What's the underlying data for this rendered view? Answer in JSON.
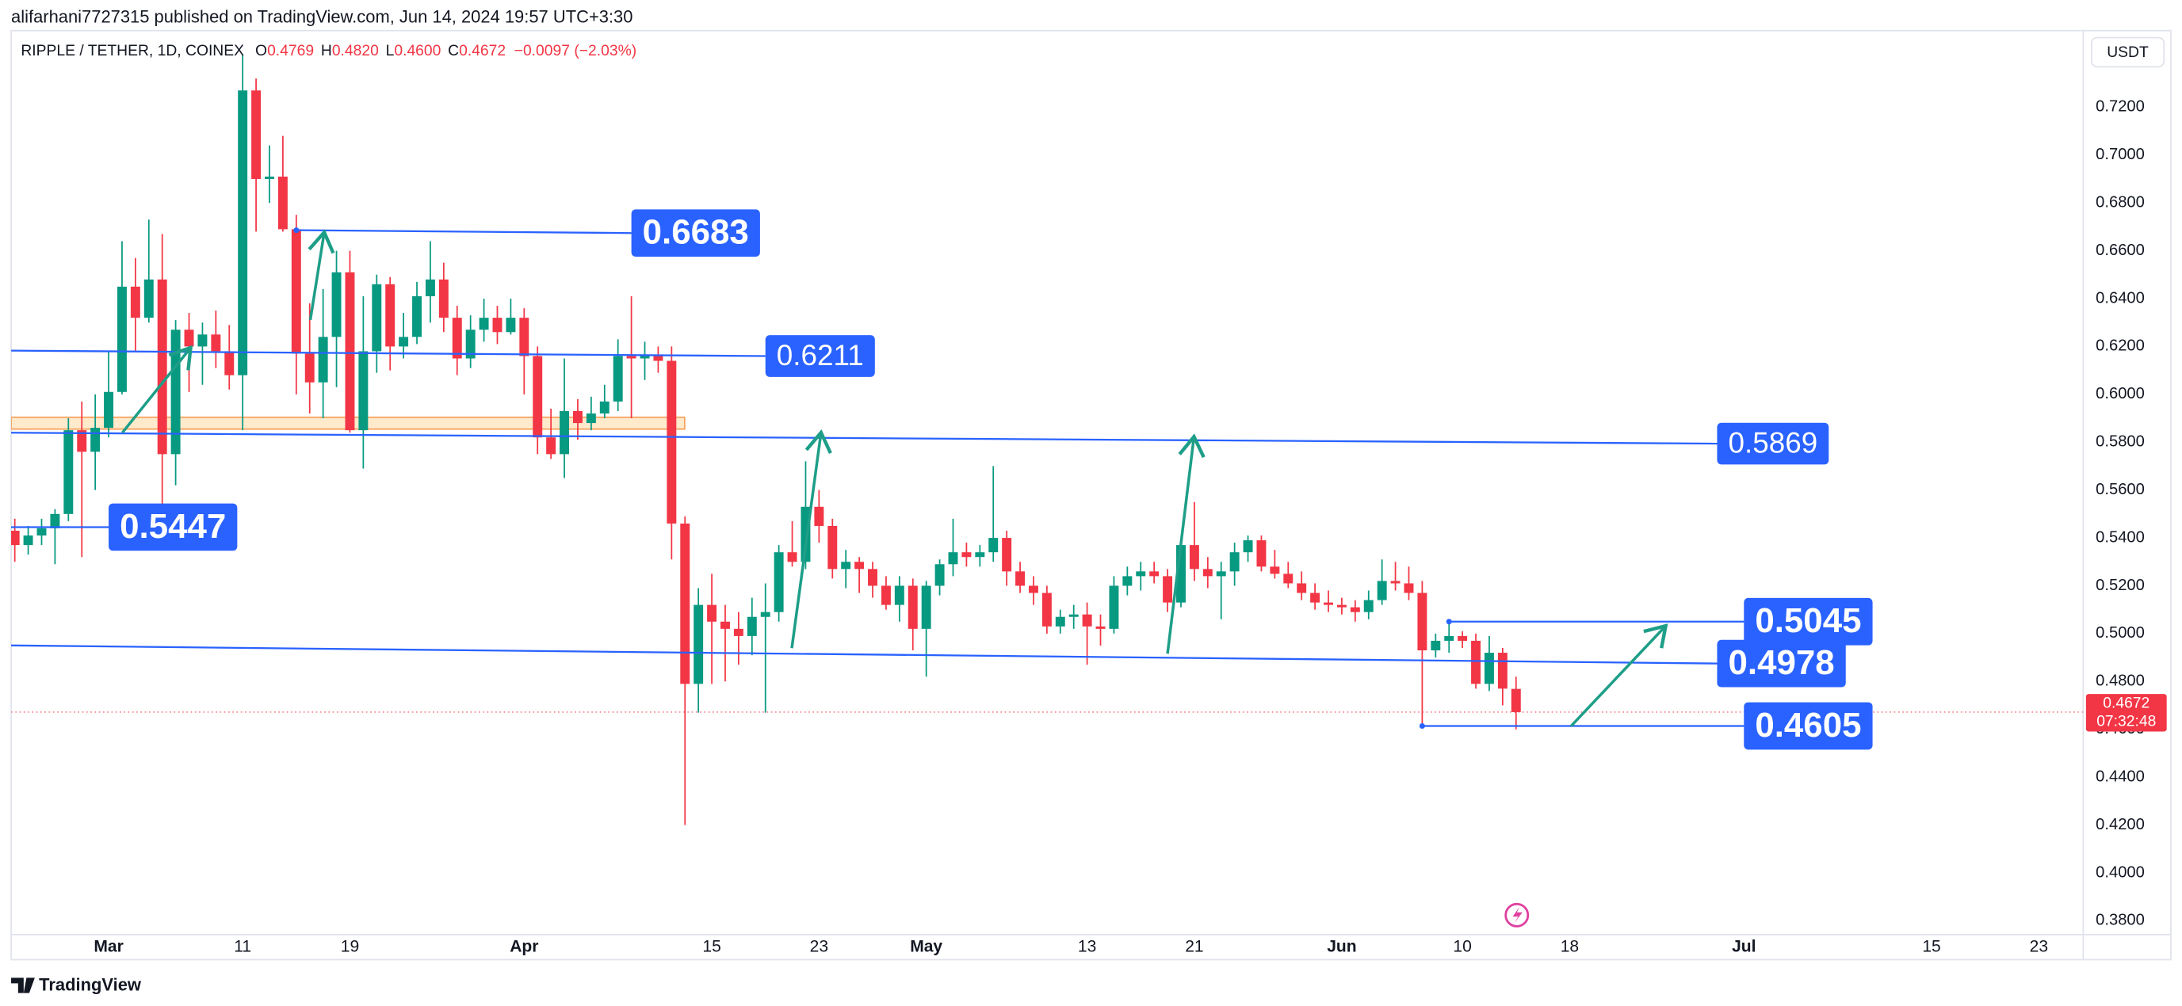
{
  "header": {
    "published": "alifarhani7727315 published on TradingView.com, Jun 14, 2024 19:57 UTC+3:30"
  },
  "footer": {
    "brand": "TradingView"
  },
  "chart_data": {
    "type": "candlestick",
    "symbol": "RIPPLE / TETHER, 1D, COINEX",
    "ohlc_legend": [
      {
        "key": "O",
        "value": "0.4769"
      },
      {
        "key": "H",
        "value": "0.4820"
      },
      {
        "key": "L",
        "value": "0.4600"
      },
      {
        "key": "C",
        "value": "0.4672"
      }
    ],
    "change": "−0.0097 (−2.03%)",
    "currency": "USDT",
    "up_color": "#089981",
    "down_color": "#f23645",
    "drawing_color": "#2962ff",
    "x": [
      "Feb 23",
      "Feb 24",
      "Feb 25",
      "Feb 26",
      "Feb 27",
      "Feb 28",
      "Feb 29",
      "Mar 1",
      "Mar 2",
      "Mar 3",
      "Mar 4",
      "Mar 5",
      "Mar 6",
      "Mar 7",
      "Mar 8",
      "Mar 9",
      "Mar 10",
      "Mar 11",
      "Mar 12",
      "Mar 13",
      "Mar 14",
      "Mar 15",
      "Mar 16",
      "Mar 17",
      "Mar 18",
      "Mar 19",
      "Mar 20",
      "Mar 21",
      "Mar 22",
      "Mar 23",
      "Mar 24",
      "Mar 25",
      "Mar 26",
      "Mar 27",
      "Mar 28",
      "Mar 29",
      "Mar 30",
      "Mar 31",
      "Apr 1",
      "Apr 2",
      "Apr 3",
      "Apr 4",
      "Apr 5",
      "Apr 6",
      "Apr 7",
      "Apr 8",
      "Apr 9",
      "Apr 10",
      "Apr 11",
      "Apr 12",
      "Apr 13",
      "Apr 14",
      "Apr 15",
      "Apr 16",
      "Apr 17",
      "Apr 18",
      "Apr 19",
      "Apr 20",
      "Apr 21",
      "Apr 22",
      "Apr 23",
      "Apr 24",
      "Apr 25",
      "Apr 26",
      "Apr 27",
      "Apr 28",
      "Apr 29",
      "Apr 30",
      "May 1",
      "May 2",
      "May 3",
      "May 4",
      "May 5",
      "May 6",
      "May 7",
      "May 8",
      "May 9",
      "May 10",
      "May 11",
      "May 12",
      "May 13",
      "May 14",
      "May 15",
      "May 16",
      "May 17",
      "May 18",
      "May 19",
      "May 20",
      "May 21",
      "May 22",
      "May 23",
      "May 24",
      "May 25",
      "May 26",
      "May 27",
      "May 28",
      "May 29",
      "May 30",
      "May 31",
      "Jun 1",
      "Jun 2",
      "Jun 3",
      "Jun 4",
      "Jun 5",
      "Jun 6",
      "Jun 7",
      "Jun 8",
      "Jun 9",
      "Jun 10",
      "Jun 11",
      "Jun 12",
      "Jun 13",
      "Jun 14"
    ],
    "ohlc": [
      [
        0.543,
        0.548,
        0.53,
        0.537
      ],
      [
        0.537,
        0.545,
        0.533,
        0.541
      ],
      [
        0.541,
        0.548,
        0.537,
        0.544
      ],
      [
        0.544,
        0.552,
        0.529,
        0.55
      ],
      [
        0.55,
        0.59,
        0.547,
        0.585
      ],
      [
        0.585,
        0.597,
        0.532,
        0.576
      ],
      [
        0.576,
        0.6,
        0.56,
        0.586
      ],
      [
        0.586,
        0.618,
        0.582,
        0.601
      ],
      [
        0.601,
        0.664,
        0.6,
        0.645
      ],
      [
        0.645,
        0.657,
        0.618,
        0.632
      ],
      [
        0.632,
        0.673,
        0.63,
        0.648
      ],
      [
        0.648,
        0.667,
        0.55,
        0.575
      ],
      [
        0.575,
        0.631,
        0.562,
        0.627
      ],
      [
        0.627,
        0.634,
        0.601,
        0.62
      ],
      [
        0.62,
        0.63,
        0.604,
        0.625
      ],
      [
        0.625,
        0.635,
        0.611,
        0.618
      ],
      [
        0.618,
        0.629,
        0.602,
        0.608
      ],
      [
        0.608,
        0.742,
        0.585,
        0.727
      ],
      [
        0.727,
        0.732,
        0.668,
        0.69
      ],
      [
        0.69,
        0.704,
        0.68,
        0.691
      ],
      [
        0.691,
        0.708,
        0.668,
        0.669
      ],
      [
        0.669,
        0.675,
        0.6,
        0.617
      ],
      [
        0.617,
        0.638,
        0.592,
        0.605
      ],
      [
        0.605,
        0.644,
        0.59,
        0.624
      ],
      [
        0.624,
        0.66,
        0.603,
        0.651
      ],
      [
        0.651,
        0.66,
        0.584,
        0.585
      ],
      [
        0.585,
        0.641,
        0.569,
        0.618
      ],
      [
        0.618,
        0.65,
        0.609,
        0.646
      ],
      [
        0.646,
        0.649,
        0.61,
        0.62
      ],
      [
        0.62,
        0.634,
        0.615,
        0.624
      ],
      [
        0.624,
        0.647,
        0.621,
        0.641
      ],
      [
        0.641,
        0.664,
        0.63,
        0.648
      ],
      [
        0.648,
        0.655,
        0.626,
        0.632
      ],
      [
        0.632,
        0.637,
        0.608,
        0.615
      ],
      [
        0.615,
        0.633,
        0.611,
        0.627
      ],
      [
        0.627,
        0.64,
        0.622,
        0.632
      ],
      [
        0.632,
        0.637,
        0.621,
        0.626
      ],
      [
        0.626,
        0.64,
        0.625,
        0.632
      ],
      [
        0.632,
        0.636,
        0.6,
        0.616
      ],
      [
        0.616,
        0.62,
        0.575,
        0.582
      ],
      [
        0.582,
        0.594,
        0.573,
        0.575
      ],
      [
        0.575,
        0.615,
        0.565,
        0.593
      ],
      [
        0.593,
        0.598,
        0.581,
        0.588
      ],
      [
        0.588,
        0.599,
        0.585,
        0.592
      ],
      [
        0.592,
        0.604,
        0.59,
        0.597
      ],
      [
        0.597,
        0.623,
        0.593,
        0.616
      ],
      [
        0.616,
        0.641,
        0.59,
        0.615
      ],
      [
        0.615,
        0.622,
        0.606,
        0.616
      ],
      [
        0.616,
        0.62,
        0.609,
        0.614
      ],
      [
        0.614,
        0.62,
        0.531,
        0.546
      ],
      [
        0.546,
        0.549,
        0.42,
        0.479
      ],
      [
        0.479,
        0.519,
        0.467,
        0.512
      ],
      [
        0.512,
        0.525,
        0.479,
        0.505
      ],
      [
        0.505,
        0.512,
        0.48,
        0.502
      ],
      [
        0.502,
        0.509,
        0.487,
        0.499
      ],
      [
        0.499,
        0.515,
        0.491,
        0.507
      ],
      [
        0.507,
        0.521,
        0.467,
        0.509
      ],
      [
        0.509,
        0.537,
        0.505,
        0.534
      ],
      [
        0.534,
        0.547,
        0.528,
        0.53
      ],
      [
        0.53,
        0.572,
        0.527,
        0.553
      ],
      [
        0.553,
        0.56,
        0.538,
        0.545
      ],
      [
        0.545,
        0.548,
        0.523,
        0.527
      ],
      [
        0.527,
        0.535,
        0.519,
        0.53
      ],
      [
        0.53,
        0.532,
        0.517,
        0.527
      ],
      [
        0.527,
        0.53,
        0.515,
        0.52
      ],
      [
        0.52,
        0.524,
        0.51,
        0.512
      ],
      [
        0.512,
        0.524,
        0.505,
        0.52
      ],
      [
        0.52,
        0.523,
        0.493,
        0.502
      ],
      [
        0.502,
        0.522,
        0.482,
        0.52
      ],
      [
        0.52,
        0.531,
        0.516,
        0.529
      ],
      [
        0.529,
        0.548,
        0.524,
        0.534
      ],
      [
        0.534,
        0.538,
        0.528,
        0.532
      ],
      [
        0.532,
        0.537,
        0.528,
        0.534
      ],
      [
        0.534,
        0.57,
        0.53,
        0.54
      ],
      [
        0.54,
        0.543,
        0.52,
        0.526
      ],
      [
        0.526,
        0.53,
        0.517,
        0.52
      ],
      [
        0.52,
        0.524,
        0.512,
        0.517
      ],
      [
        0.517,
        0.52,
        0.5,
        0.503
      ],
      [
        0.503,
        0.51,
        0.5,
        0.507
      ],
      [
        0.507,
        0.512,
        0.502,
        0.508
      ],
      [
        0.508,
        0.513,
        0.487,
        0.503
      ],
      [
        0.503,
        0.508,
        0.495,
        0.502
      ],
      [
        0.502,
        0.524,
        0.5,
        0.52
      ],
      [
        0.52,
        0.528,
        0.516,
        0.524
      ],
      [
        0.524,
        0.53,
        0.518,
        0.526
      ],
      [
        0.526,
        0.53,
        0.521,
        0.524
      ],
      [
        0.524,
        0.527,
        0.509,
        0.513
      ],
      [
        0.513,
        0.54,
        0.511,
        0.537
      ],
      [
        0.537,
        0.555,
        0.522,
        0.527
      ],
      [
        0.527,
        0.532,
        0.519,
        0.524
      ],
      [
        0.524,
        0.53,
        0.506,
        0.526
      ],
      [
        0.526,
        0.538,
        0.52,
        0.534
      ],
      [
        0.534,
        0.541,
        0.53,
        0.539
      ],
      [
        0.539,
        0.541,
        0.526,
        0.528
      ],
      [
        0.528,
        0.535,
        0.523,
        0.525
      ],
      [
        0.525,
        0.53,
        0.519,
        0.521
      ],
      [
        0.521,
        0.526,
        0.514,
        0.517
      ],
      [
        0.517,
        0.521,
        0.51,
        0.513
      ],
      [
        0.513,
        0.518,
        0.509,
        0.512
      ],
      [
        0.512,
        0.515,
        0.508,
        0.511
      ],
      [
        0.511,
        0.514,
        0.505,
        0.509
      ],
      [
        0.509,
        0.518,
        0.506,
        0.514
      ],
      [
        0.514,
        0.531,
        0.512,
        0.522
      ],
      [
        0.522,
        0.53,
        0.518,
        0.521
      ],
      [
        0.521,
        0.528,
        0.514,
        0.517
      ],
      [
        0.517,
        0.522,
        0.4605,
        0.493
      ],
      [
        0.493,
        0.5,
        0.49,
        0.497
      ],
      [
        0.497,
        0.505,
        0.492,
        0.499
      ],
      [
        0.499,
        0.501,
        0.494,
        0.497
      ],
      [
        0.497,
        0.5,
        0.477,
        0.479
      ],
      [
        0.479,
        0.499,
        0.476,
        0.492
      ],
      [
        0.492,
        0.494,
        0.47,
        0.477
      ],
      [
        0.4769,
        0.482,
        0.46,
        0.4672
      ]
    ],
    "xlim": [
      "Feb 22",
      "Jul 26"
    ],
    "xticks": [
      {
        "value": "Mar 1",
        "label": "Mar"
      },
      {
        "value": "Mar 11",
        "label": "11"
      },
      {
        "value": "Mar 19",
        "label": "19"
      },
      {
        "value": "Apr 1",
        "label": "Apr"
      },
      {
        "value": "Apr 15",
        "label": "15"
      },
      {
        "value": "Apr 23",
        "label": "23"
      },
      {
        "value": "May 1",
        "label": "May"
      },
      {
        "value": "May 13",
        "label": "13"
      },
      {
        "value": "May 21",
        "label": "21"
      },
      {
        "value": "Jun 1",
        "label": "Jun"
      },
      {
        "value": "Jun 10",
        "label": "10"
      },
      {
        "value": "Jun 18",
        "label": "18"
      },
      {
        "value": "Jul 1",
        "label": "Jul"
      },
      {
        "value": "Jul 15",
        "label": "15"
      },
      {
        "value": "Jul 23",
        "label": "23"
      }
    ],
    "ylim": [
      0.3742,
      0.752
    ],
    "yticks": [
      {
        "value": 0.38,
        "label": "0.3800"
      },
      {
        "value": 0.4,
        "label": "0.4000"
      },
      {
        "value": 0.42,
        "label": "0.4200"
      },
      {
        "value": 0.44,
        "label": "0.4400"
      },
      {
        "value": 0.46,
        "label": "0.4600"
      },
      {
        "value": 0.48,
        "label": "0.4800"
      },
      {
        "value": 0.5,
        "label": "0.5000"
      },
      {
        "value": 0.52,
        "label": "0.5200"
      },
      {
        "value": 0.54,
        "label": "0.5400"
      },
      {
        "value": 0.56,
        "label": "0.5600"
      },
      {
        "value": 0.58,
        "label": "0.5800"
      },
      {
        "value": 0.6,
        "label": "0.6000"
      },
      {
        "value": 0.62,
        "label": "0.6200"
      },
      {
        "value": 0.64,
        "label": "0.6400"
      },
      {
        "value": 0.66,
        "label": "0.6600"
      },
      {
        "value": 0.68,
        "label": "0.6800"
      },
      {
        "value": 0.7,
        "label": "0.7000"
      },
      {
        "value": 0.72,
        "label": "0.7200"
      }
    ],
    "price_marker": {
      "value": 0.4672,
      "label": "0.4672",
      "countdown": "07:32:48"
    },
    "drawings": [
      {
        "text": "0.6683",
        "bold": true,
        "line": [
          [
            "Mar 15",
            0.6686
          ],
          [
            "Apr 9",
            0.6674
          ]
        ]
      },
      {
        "text": "0.6211",
        "bold": false,
        "line": [
          [
            "Feb 22",
            0.6183
          ],
          [
            "Apr 19",
            0.616
          ]
        ]
      },
      {
        "text": "0.5869",
        "bold": false,
        "line": [
          [
            "Feb 22",
            0.584
          ],
          [
            "Jun 29",
            0.5794
          ]
        ]
      },
      {
        "text": "0.5447",
        "bold": true,
        "line": [
          [
            "Feb 22",
            0.5445
          ],
          [
            "Mar 1",
            0.5445
          ]
        ]
      },
      {
        "text": "0.5045",
        "bold": true,
        "line": [
          [
            "Jun 9",
            0.505
          ],
          [
            "Jul 1",
            0.505
          ]
        ]
      },
      {
        "text": "0.4978",
        "bold": true,
        "line": [
          [
            "Feb 22",
            0.4951
          ],
          [
            "Jun 29",
            0.4875
          ]
        ]
      },
      {
        "text": "0.4605",
        "bold": true,
        "line": [
          [
            "Jun 7",
            0.4614
          ],
          [
            "Jul 1",
            0.4614
          ]
        ]
      }
    ]
  }
}
